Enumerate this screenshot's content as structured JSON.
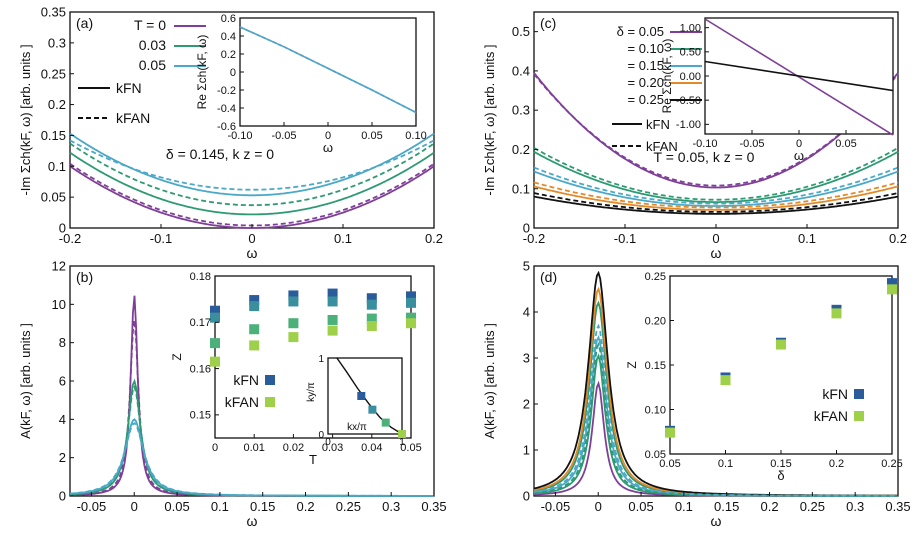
{
  "colors": {
    "purple": "#7f3f98",
    "green": "#2e9a72",
    "blue": "#4aa8c8",
    "orange": "#e08a2a",
    "black": "#111111",
    "darkblue": "#2a5c9c",
    "teal": "#3a8f9f",
    "midgreen": "#4bb07a",
    "lightgreen": "#9fd04a"
  },
  "chart_data": [
    {
      "id": "a",
      "panel_label": "(a)",
      "type": "line",
      "xlabel": "ω",
      "ylabel": "-Im Σch(kF, ω) [arb. units ]",
      "xlim": [
        -0.2,
        0.2
      ],
      "ylim": [
        0,
        0.35
      ],
      "xticks": [
        "-0.2",
        "-0.1",
        "0",
        "0.1",
        "0.2"
      ],
      "yticks": [
        "0",
        "0.05",
        "0.1",
        "0.15",
        "0.2",
        "0.25",
        "0.3",
        "0.35"
      ],
      "annotation": "δ = 0.145, k z = 0",
      "legend": {
        "title": "T = 0",
        "entries": [
          "T = 0",
          "0.03",
          "0.05"
        ],
        "style_entries": [
          "kFN",
          "kFAN"
        ]
      },
      "series": [
        {
          "name": "T = 0, kF N",
          "color": "purple",
          "dash": false,
          "params": [
            0.0,
            2.5
          ]
        },
        {
          "name": "T = 0, kF AN",
          "color": "purple",
          "dash": true,
          "params": [
            0.004,
            2.5
          ]
        },
        {
          "name": "0.03, kF N",
          "color": "green",
          "dash": false,
          "params": [
            0.022,
            2.5
          ]
        },
        {
          "name": "0.03, kF AN",
          "color": "green",
          "dash": true,
          "params": [
            0.037,
            2.5
          ]
        },
        {
          "name": "0.05, kF N",
          "color": "blue",
          "dash": false,
          "params": [
            0.053,
            2.5
          ]
        },
        {
          "name": "0.05, kF AN",
          "color": "blue",
          "dash": true,
          "params": [
            0.062,
            2.0
          ]
        }
      ],
      "inset": {
        "xlabel": "ω",
        "ylabel": "Re Σch(kF, ω)",
        "xlim": [
          -0.1,
          0.1
        ],
        "ylim": [
          -0.6,
          0.6
        ],
        "xticks": [
          "-0.10",
          "-0.05",
          "0",
          "0.05",
          "0.10"
        ],
        "yticks": [
          "-0.6",
          "-0.4",
          "-0.2",
          "0",
          "0.2",
          "0.4",
          "0.6"
        ],
        "x": [
          -0.1,
          -0.05,
          0.0,
          0.05,
          0.1
        ],
        "y": [
          0.5,
          0.28,
          0.04,
          -0.2,
          -0.45
        ]
      }
    },
    {
      "id": "b",
      "panel_label": "(b)",
      "type": "line",
      "xlabel": "ω",
      "ylabel": "A(kF, ω) [arb. units ]",
      "xlim": [
        -0.075,
        0.35
      ],
      "ylim": [
        0,
        12
      ],
      "xticks": [
        "-0.05",
        "0",
        "0.05",
        "0.1",
        "0.15",
        "0.2",
        "0.25",
        "0.3",
        "0.35"
      ],
      "yticks": [
        "0",
        "2",
        "4",
        "6",
        "8",
        "10",
        "12"
      ],
      "series": [
        {
          "name": "T = 0, kF N",
          "color": "purple",
          "dash": false,
          "params": [
            10.5,
            0.005
          ]
        },
        {
          "name": "T = 0, kF AN",
          "color": "purple",
          "dash": true,
          "params": [
            9.2,
            0.006
          ]
        },
        {
          "name": "0.03, kF N",
          "color": "green",
          "dash": false,
          "params": [
            6.0,
            0.009
          ]
        },
        {
          "name": "0.03, kF AN",
          "color": "green",
          "dash": true,
          "params": [
            5.7,
            0.0095
          ]
        },
        {
          "name": "0.05, kF N",
          "color": "blue",
          "dash": false,
          "params": [
            4.0,
            0.013
          ]
        },
        {
          "name": "0.05, kF AN",
          "color": "blue",
          "dash": true,
          "params": [
            3.8,
            0.014
          ]
        }
      ],
      "inset": {
        "xlabel": "T",
        "ylabel": "Z",
        "xlim": [
          0,
          0.05
        ],
        "ylim": [
          0.145,
          0.18
        ],
        "xticks": [
          "0",
          "0.01",
          "0.02",
          "0.03",
          "0.04",
          "0.05"
        ],
        "yticks": [
          "0.15",
          "0.16",
          "0.17",
          "0.18"
        ],
        "legend": [
          "kFN",
          "kFAN"
        ],
        "points": [
          {
            "color": "darkblue",
            "x": [
              0,
              0.01,
              0.02,
              0.03,
              0.04,
              0.05
            ],
            "y": [
              0.1725,
              0.1748,
              0.1758,
              0.1762,
              0.1752,
              0.1756
            ]
          },
          {
            "color": "teal",
            "x": [
              0,
              0.01,
              0.02,
              0.03,
              0.04,
              0.05
            ],
            "y": [
              0.171,
              0.1735,
              0.1745,
              0.1745,
              0.1738,
              0.1742
            ]
          },
          {
            "color": "midgreen",
            "x": [
              0,
              0.01,
              0.02,
              0.03,
              0.04,
              0.05
            ],
            "y": [
              0.1655,
              0.1685,
              0.1698,
              0.1705,
              0.1708,
              0.171
            ]
          },
          {
            "color": "lightgreen",
            "x": [
              0,
              0.01,
              0.02,
              0.03,
              0.04,
              0.05
            ],
            "y": [
              0.1615,
              0.165,
              0.1668,
              0.1682,
              0.1692,
              0.1698
            ]
          }
        ]
      },
      "subinset": {
        "xlabel": "kx/π",
        "ylabel": "ky/π",
        "xticks": [
          "0",
          "1"
        ],
        "yticks": [
          "0",
          "1"
        ],
        "curve_x": [
          0.12,
          0.25,
          0.4,
          0.55,
          0.7,
          0.85,
          1.0
        ],
        "curve_y": [
          1.0,
          0.82,
          0.6,
          0.4,
          0.22,
          0.09,
          0.0
        ],
        "points_x": [
          0.45,
          0.6,
          0.78,
          1.0
        ],
        "points_y": [
          0.5,
          0.32,
          0.15,
          0.0
        ],
        "points_colors": [
          "darkblue",
          "teal",
          "midgreen",
          "lightgreen"
        ]
      }
    },
    {
      "id": "c",
      "panel_label": "(c)",
      "type": "line",
      "xlabel": "ω",
      "ylabel": "-Im Σch(kF, ω) [arb. units ]",
      "xlim": [
        -0.2,
        0.2
      ],
      "ylim": [
        0,
        0.55
      ],
      "xticks": [
        "-0.2",
        "-0.1",
        "0",
        "0.1",
        "0.2"
      ],
      "yticks": [
        "0",
        "0.1",
        "0.2",
        "0.3",
        "0.4",
        "0.5"
      ],
      "annotation": "T = 0.05, k z = 0",
      "legend": {
        "entries": [
          "δ = 0.05",
          "= 0.10",
          "= 0.15",
          "= 0.20",
          "= 0.25"
        ],
        "style_entries": [
          "kFN",
          "kFAN"
        ]
      },
      "series": [
        {
          "name": "δ = 0.05, kF N",
          "color": "purple",
          "dash": false,
          "params": [
            0.103,
            7.3
          ]
        },
        {
          "name": "δ = 0.05, kF AN",
          "color": "purple",
          "dash": true,
          "params": [
            0.108,
            7.1
          ]
        },
        {
          "name": "= 0.10, kF N",
          "color": "green",
          "dash": false,
          "params": [
            0.066,
            3.2
          ]
        },
        {
          "name": "= 0.10, kF AN",
          "color": "green",
          "dash": true,
          "params": [
            0.072,
            3.3
          ]
        },
        {
          "name": "= 0.15, kF N",
          "color": "blue",
          "dash": false,
          "params": [
            0.056,
            2.2
          ]
        },
        {
          "name": "= 0.15, kF AN",
          "color": "blue",
          "dash": true,
          "params": [
            0.062,
            2.3
          ]
        },
        {
          "name": "= 0.20, kF N",
          "color": "orange",
          "dash": false,
          "params": [
            0.046,
            1.5
          ]
        },
        {
          "name": "= 0.20, kF AN",
          "color": "orange",
          "dash": true,
          "params": [
            0.052,
            1.6
          ]
        },
        {
          "name": "= 0.25, kF N",
          "color": "black",
          "dash": false,
          "params": [
            0.036,
            1.1
          ]
        },
        {
          "name": "= 0.25, kF AN",
          "color": "black",
          "dash": true,
          "params": [
            0.041,
            1.2
          ]
        }
      ],
      "inset": {
        "xlabel": "ω",
        "ylabel": "Re Σch(kF, ω)",
        "xlim": [
          -0.1,
          0.1
        ],
        "ylim": [
          -1.2,
          1.2
        ],
        "xticks": [
          "-0.10",
          "-0.05",
          "0",
          "0.05"
        ],
        "yticks": [
          "-1.00",
          "-0.50",
          "0.00",
          "0.50",
          "1.00"
        ],
        "lines": [
          {
            "color": "purple",
            "x": [
              -0.1,
              0.1
            ],
            "y": [
              1.18,
              -1.22
            ]
          },
          {
            "color": "black",
            "x": [
              -0.1,
              0.1
            ],
            "y": [
              0.3,
              -0.3
            ]
          }
        ]
      }
    },
    {
      "id": "d",
      "panel_label": "(d)",
      "type": "line",
      "xlabel": "ω",
      "ylabel": "A(kF, ω) [arb. units ]",
      "xlim": [
        -0.075,
        0.35
      ],
      "ylim": [
        0,
        5
      ],
      "xticks": [
        "-0.05",
        "0",
        "0.05",
        "0.1",
        "0.15",
        "0.2",
        "0.25",
        "0.3",
        "0.35"
      ],
      "yticks": [
        "0",
        "1",
        "2",
        "3",
        "4",
        "5"
      ],
      "series": [
        {
          "name": "δ = 0.05, kF N",
          "color": "purple",
          "dash": false,
          "params": [
            2.45,
            0.0085
          ]
        },
        {
          "name": "= 0.10, kF N",
          "color": "green",
          "dash": false,
          "params": [
            3.05,
            0.01
          ]
        },
        {
          "name": "= 0.15, kF N",
          "color": "blue",
          "dash": false,
          "params": [
            3.45,
            0.0115
          ]
        },
        {
          "name": "= 0.20, kF N",
          "color": "green",
          "dash": false,
          "params": [
            4.2,
            0.0125
          ]
        },
        {
          "name": "= 0.20, kF AN",
          "color": "orange",
          "dash": false,
          "params": [
            4.5,
            0.013
          ]
        },
        {
          "name": "= 0.25, kF N",
          "color": "black",
          "dash": false,
          "params": [
            4.85,
            0.014
          ]
        },
        {
          "name": "= 0.10, kF AN",
          "color": "green",
          "dash": true,
          "params": [
            3.3,
            0.0105
          ]
        },
        {
          "name": "= 0.15, kF AN",
          "color": "blue",
          "dash": true,
          "params": [
            3.7,
            0.012
          ]
        }
      ],
      "inset": {
        "xlabel": "δ",
        "ylabel": "Z",
        "xlim": [
          0.05,
          0.25
        ],
        "ylim": [
          0.05,
          0.25
        ],
        "xticks": [
          "0.05",
          "0.1",
          "0.15",
          "0.2",
          "0.25"
        ],
        "yticks": [
          "0.05",
          "0.10",
          "0.15",
          "0.20",
          "0.25"
        ],
        "legend": [
          "kFN",
          "kFAN"
        ],
        "points": [
          {
            "color": "darkblue",
            "x": [
              0.05,
              0.1,
              0.15,
              0.2,
              0.25
            ],
            "y": [
              0.076,
              0.136,
              0.175,
              0.212,
              0.242
            ]
          },
          {
            "color": "lightgreen",
            "x": [
              0.05,
              0.1,
              0.15,
              0.2,
              0.25
            ],
            "y": [
              0.074,
              0.133,
              0.173,
              0.208,
              0.235
            ]
          }
        ]
      }
    }
  ]
}
